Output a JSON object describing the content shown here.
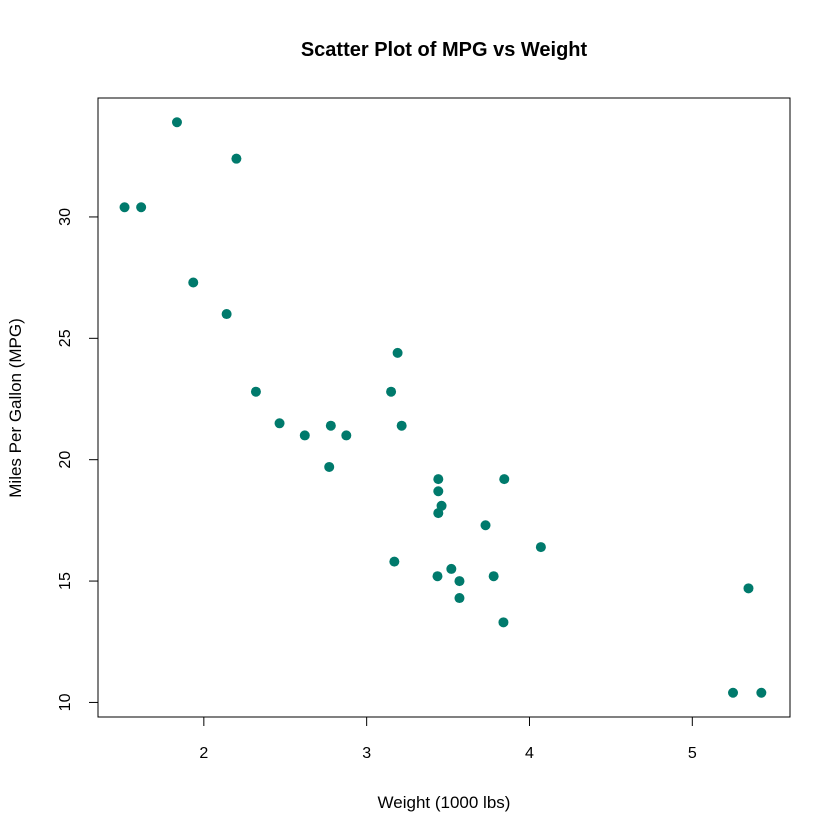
{
  "chart_data": {
    "type": "scatter",
    "title": "Scatter Plot of MPG vs Weight",
    "xlabel": "Weight (1000 lbs)",
    "ylabel": "Miles Per Gallon (MPG)",
    "xlim": [
      1.35,
      5.6
    ],
    "ylim": [
      9.4,
      34.9
    ],
    "x_ticks": [
      2,
      3,
      4,
      5
    ],
    "y_ticks": [
      10,
      15,
      20,
      25,
      30
    ],
    "grid": false,
    "point_color": "#007A6C",
    "points": [
      {
        "x": 2.62,
        "y": 21.0
      },
      {
        "x": 2.875,
        "y": 21.0
      },
      {
        "x": 2.32,
        "y": 22.8
      },
      {
        "x": 3.215,
        "y": 21.4
      },
      {
        "x": 3.44,
        "y": 18.7
      },
      {
        "x": 3.46,
        "y": 18.1
      },
      {
        "x": 3.57,
        "y": 14.3
      },
      {
        "x": 3.19,
        "y": 24.4
      },
      {
        "x": 3.15,
        "y": 22.8
      },
      {
        "x": 3.44,
        "y": 19.2
      },
      {
        "x": 3.44,
        "y": 17.8
      },
      {
        "x": 4.07,
        "y": 16.4
      },
      {
        "x": 3.73,
        "y": 17.3
      },
      {
        "x": 3.78,
        "y": 15.2
      },
      {
        "x": 5.25,
        "y": 10.4
      },
      {
        "x": 5.424,
        "y": 10.4
      },
      {
        "x": 5.345,
        "y": 14.7
      },
      {
        "x": 2.2,
        "y": 32.4
      },
      {
        "x": 1.615,
        "y": 30.4
      },
      {
        "x": 1.835,
        "y": 33.9
      },
      {
        "x": 2.465,
        "y": 21.5
      },
      {
        "x": 3.52,
        "y": 15.5
      },
      {
        "x": 3.435,
        "y": 15.2
      },
      {
        "x": 3.84,
        "y": 13.3
      },
      {
        "x": 3.845,
        "y": 19.2
      },
      {
        "x": 1.935,
        "y": 27.3
      },
      {
        "x": 2.14,
        "y": 26.0
      },
      {
        "x": 1.513,
        "y": 30.4
      },
      {
        "x": 3.17,
        "y": 15.8
      },
      {
        "x": 2.77,
        "y": 19.7
      },
      {
        "x": 3.57,
        "y": 15.0
      },
      {
        "x": 2.78,
        "y": 21.4
      }
    ]
  }
}
